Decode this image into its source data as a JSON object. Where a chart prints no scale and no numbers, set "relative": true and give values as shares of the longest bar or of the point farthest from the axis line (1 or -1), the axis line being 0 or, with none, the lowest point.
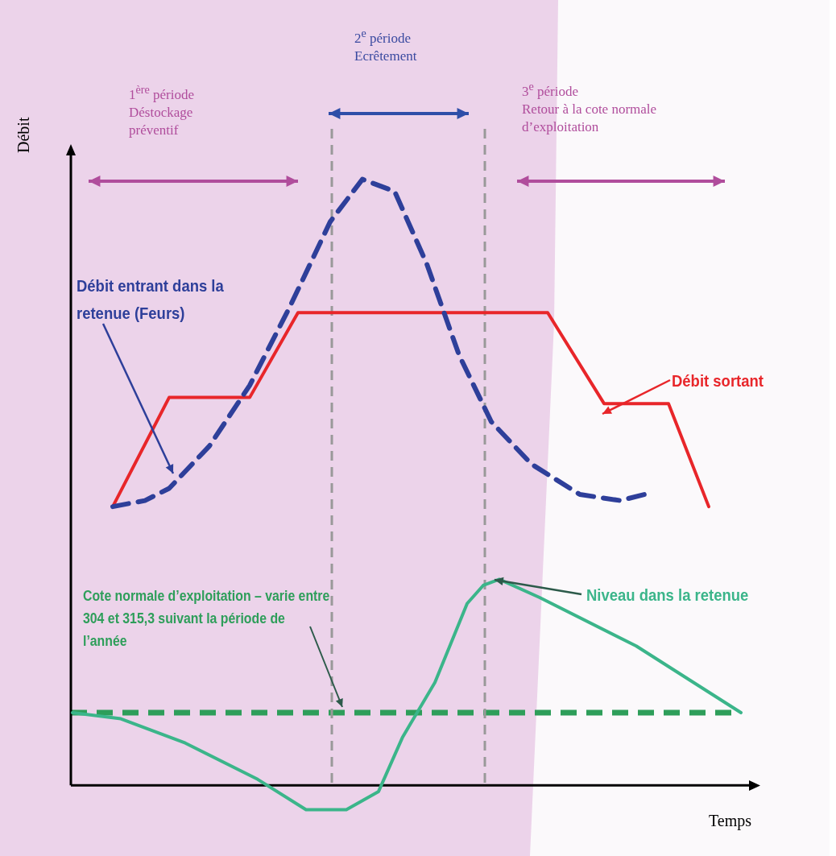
{
  "chart_data": {
    "type": "line",
    "relative": true,
    "xlabel": "Temps",
    "ylabel": "Débit",
    "legend": false,
    "marker": "none",
    "categories": [
      null,
      null,
      null,
      null,
      null,
      null,
      null,
      null,
      null,
      null,
      null,
      null,
      null,
      null,
      null,
      null,
      null,
      null,
      null,
      null,
      null,
      null,
      null,
      null,
      null,
      null,
      null,
      null,
      null,
      null,
      null,
      null,
      null,
      null,
      null,
      null,
      null,
      null,
      null,
      null,
      null,
      null,
      null,
      null,
      null,
      null,
      null,
      null,
      null,
      null,
      null,
      null,
      null,
      null,
      null,
      null,
      null,
      null,
      null,
      null,
      null,
      null,
      null,
      null,
      null,
      null,
      null,
      null,
      null,
      null,
      null,
      null,
      null,
      null,
      null,
      null,
      null,
      null,
      null,
      null,
      null,
      null,
      null,
      null,
      null
    ],
    "series": [
      {
        "name": "Débit entrant dans la retenue (Feurs)",
        "color": "#2e3f9a",
        "line_style": "dashed",
        "values": [
          null,
          null,
          null,
          null,
          null,
          0.46,
          null,
          null,
          null,
          0.47,
          null,
          null,
          0.49,
          null,
          null,
          null,
          null,
          0.56,
          null,
          null,
          null,
          null,
          0.66,
          null,
          null,
          null,
          null,
          0.79,
          null,
          null,
          null,
          null,
          0.93,
          null,
          null,
          null,
          1,
          null,
          null,
          null,
          0.98,
          null,
          null,
          null,
          0.86,
          null,
          null,
          null,
          0.71,
          null,
          null,
          null,
          0.6,
          null,
          null,
          null,
          null,
          0.53,
          null,
          null,
          null,
          null,
          null,
          0.48,
          null,
          null,
          null,
          null,
          0.47,
          null,
          null,
          0.48,
          null,
          null,
          null,
          null,
          null,
          null,
          null,
          null,
          null,
          null,
          null,
          null,
          null
        ]
      },
      {
        "name": "Débit sortant",
        "color": "#e8262a",
        "line_style": "solid",
        "values": [
          null,
          null,
          null,
          null,
          null,
          0.46,
          null,
          null,
          null,
          null,
          null,
          null,
          0.64,
          null,
          null,
          null,
          null,
          null,
          null,
          null,
          null,
          null,
          0.64,
          null,
          null,
          null,
          null,
          null,
          0.78,
          null,
          null,
          null,
          null,
          null,
          null,
          null,
          null,
          null,
          null,
          null,
          null,
          null,
          null,
          null,
          null,
          null,
          null,
          null,
          null,
          null,
          null,
          null,
          null,
          null,
          null,
          null,
          null,
          null,
          null,
          0.78,
          null,
          null,
          null,
          null,
          null,
          null,
          0.63,
          null,
          null,
          null,
          null,
          null,
          null,
          null,
          0.63,
          null,
          null,
          null,
          null,
          0.46,
          null,
          null,
          null,
          null,
          null
        ]
      },
      {
        "name": "Niveau dans la retenue",
        "color": "#3bb58a",
        "line_style": "solid",
        "values": [
          0.12,
          null,
          null,
          null,
          null,
          null,
          0.11,
          null,
          null,
          null,
          null,
          null,
          null,
          null,
          0.07,
          null,
          null,
          null,
          null,
          null,
          null,
          null,
          null,
          0.01,
          null,
          null,
          null,
          null,
          null,
          -0.04,
          null,
          null,
          null,
          null,
          -0.04,
          null,
          null,
          null,
          -0.01,
          null,
          null,
          0.08,
          null,
          null,
          null,
          0.17,
          null,
          null,
          null,
          0.3,
          null,
          0.33,
          null,
          0.34,
          null,
          null,
          null,
          null,
          0.31,
          null,
          null,
          null,
          null,
          null,
          null,
          null,
          null,
          null,
          null,
          null,
          0.23,
          null,
          null,
          null,
          null,
          null,
          null,
          null,
          null,
          null,
          null,
          null,
          null,
          0.12,
          null
        ]
      }
    ],
    "ref_lines": [
      {
        "axis": "y",
        "value": 0.12,
        "label": "Cote normale d’exploitation – varie entre 304 et 315,3 suivant la période de l’année",
        "color": "#2e9e5a",
        "line_style": "dashed"
      }
    ],
    "annotations": [
      "1$^{ère}$ période\nDéstockage\npréventif",
      "2$^{e}$ période\nEcrêtement",
      "3$^{e}$ période\nRetour à la cote normale\nd’exploitation"
    ]
  }
}
